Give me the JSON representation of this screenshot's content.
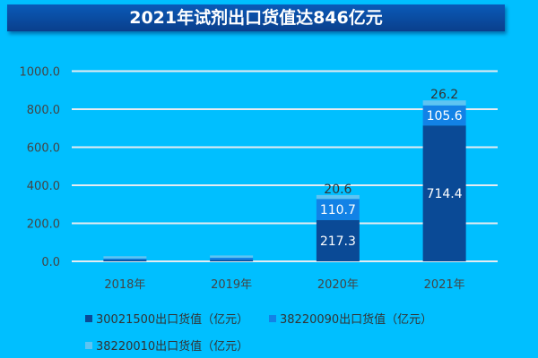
{
  "title": "2021年试剂出口货值达846亿元",
  "chart_data": {
    "type": "bar",
    "stacked": true,
    "categories": [
      "2018年",
      "2019年",
      "2020年",
      "2021年"
    ],
    "ylim": [
      0,
      1000
    ],
    "yticks": [
      "0.0",
      "200.0",
      "400.0",
      "600.0",
      "800.0",
      "1000.0"
    ],
    "grid": true,
    "legend_position": "bottom",
    "series": [
      {
        "name": "30021500出口货值（亿元）",
        "color": "#0A4A96",
        "values": [
          8,
          7,
          217.3,
          714.4
        ],
        "labels": [
          "",
          "",
          "217.3",
          "714.4"
        ]
      },
      {
        "name": "38220090出口货值（亿元）",
        "color": "#1282E6",
        "values": [
          7,
          12,
          110.7,
          105.6
        ],
        "labels": [
          "",
          "",
          "110.7",
          "105.6"
        ]
      },
      {
        "name": "38220010出口货值（亿元）",
        "color": "#5EC4F2",
        "values": [
          12,
          12,
          20.6,
          26.2
        ],
        "labels": [
          "",
          "",
          "20.6",
          "26.2"
        ]
      }
    ]
  }
}
